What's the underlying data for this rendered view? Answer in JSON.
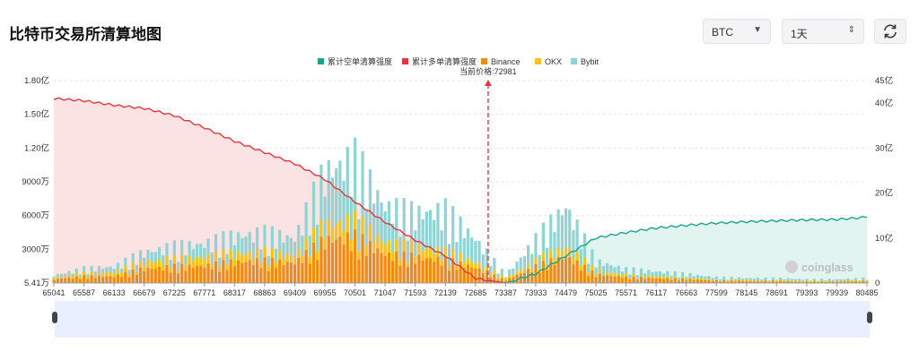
{
  "header": {
    "title": "比特币交易所清算地图",
    "coin_select": "BTC",
    "period_select": "1天",
    "refresh_icon": "refresh-icon"
  },
  "colors": {
    "cum_short": "#1aa38a",
    "cum_long": "#e0383f",
    "binance": "#f08a10",
    "okx": "#f5c319",
    "bybit": "#8fd3d4",
    "price_marker": "#e0383f",
    "long_fill": "#fbe3e4",
    "short_fill": "#e2f4ef",
    "slider_bg": "#e8efff"
  },
  "chart_data": {
    "type": "bar",
    "legend": [
      "累计空单清算强度",
      "累计多单清算强度",
      "Binance",
      "OKX",
      "Bybit"
    ],
    "legend_position": "top-center",
    "current_price_label": "当前价格:72981",
    "current_price": 72981,
    "x_ticks": [
      "65041",
      "65587",
      "66133",
      "66679",
      "67225",
      "67771",
      "68317",
      "68863",
      "69409",
      "69955",
      "70501",
      "71047",
      "71593",
      "72139",
      "72685",
      "73387",
      "73933",
      "74479",
      "75025",
      "75571",
      "76117",
      "76663",
      "77599",
      "78145",
      "78691",
      "79393",
      "79939",
      "80485"
    ],
    "y_left_ticks": [
      "5.41万",
      "3000万",
      "6000万",
      "9000万",
      "1.20亿",
      "1.50亿",
      "1.80亿"
    ],
    "y_left_range_wan": [
      5.41,
      18000
    ],
    "y_right_ticks": [
      "0",
      "10亿",
      "20亿",
      "30亿",
      "40亿",
      "45亿"
    ],
    "y_right_range_yi": [
      0,
      45
    ],
    "watermark": "coinglass",
    "cum_long_yi_by_tick": [
      41,
      40.5,
      39.5,
      38.8,
      37.2,
      34.5,
      31.5,
      29,
      26.5,
      23,
      18,
      13.5,
      9.5,
      6,
      1,
      0,
      null,
      null,
      null,
      null,
      null,
      null,
      null,
      null,
      null,
      null,
      null,
      null
    ],
    "cum_short_yi_by_tick": [
      null,
      null,
      null,
      null,
      null,
      null,
      null,
      null,
      null,
      null,
      null,
      null,
      null,
      null,
      null,
      0,
      2,
      6,
      10,
      11.2,
      12.2,
      12.8,
      13.3,
      13.6,
      13.8,
      14,
      14.1,
      14.6
    ],
    "binance_wan_by_tick": [
      400,
      700,
      700,
      1500,
      1700,
      1800,
      2200,
      2300,
      2100,
      4500,
      4800,
      3000,
      2700,
      2400,
      1600,
      300,
      1700,
      2800,
      900,
      600,
      500,
      400,
      250,
      200,
      200,
      150,
      150,
      200
    ],
    "okx_wan_by_tick": [
      200,
      300,
      400,
      700,
      800,
      900,
      900,
      900,
      800,
      1600,
      1700,
      1200,
      1000,
      900,
      600,
      200,
      600,
      1000,
      400,
      250,
      200,
      150,
      100,
      100,
      100,
      80,
      80,
      100
    ],
    "bybit_wan_by_tick": [
      200,
      500,
      600,
      1000,
      1300,
      1400,
      1800,
      2000,
      1800,
      5500,
      6500,
      3800,
      3600,
      4300,
      2400,
      300,
      2200,
      4200,
      1000,
      600,
      500,
      400,
      250,
      200,
      200,
      150,
      150,
      200
    ]
  }
}
